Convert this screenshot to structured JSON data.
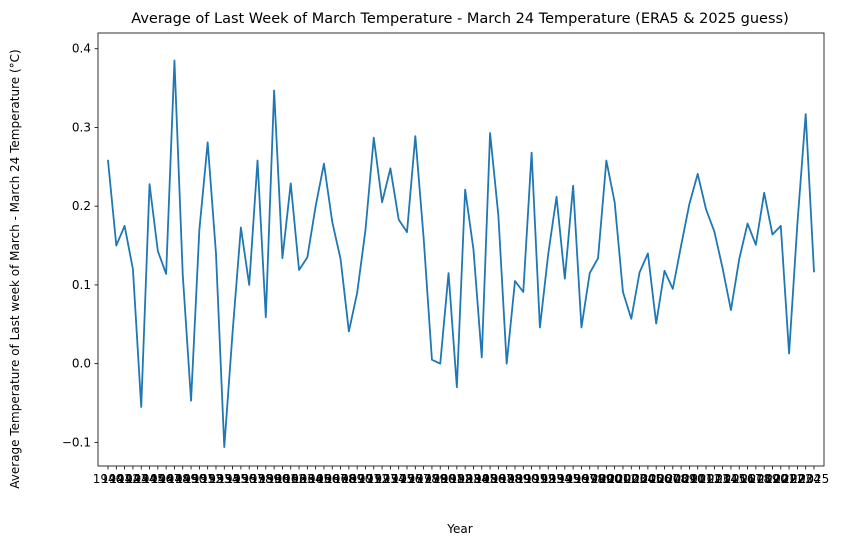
{
  "chart_data": {
    "type": "line",
    "title": "Average of Last Week of March Temperature - March 24 Temperature (ERA5 & 2025 guess)",
    "xlabel": "Year",
    "ylabel": "Average Temperature of Last week of March - March 24 Temperature (°C)",
    "ylim": [
      -0.13,
      0.42
    ],
    "yticks": [
      -0.1,
      0.0,
      0.1,
      0.2,
      0.3,
      0.4
    ],
    "ytick_labels": [
      "−0.1",
      "0.0",
      "0.1",
      "0.2",
      "0.3",
      "0.4"
    ],
    "grid": false,
    "line_color": "#1f77b4",
    "x": [
      1940,
      1941,
      1942,
      1943,
      1944,
      1945,
      1946,
      1947,
      1948,
      1949,
      1950,
      1951,
      1952,
      1953,
      1954,
      1955,
      1956,
      1957,
      1958,
      1959,
      1960,
      1961,
      1962,
      1963,
      1964,
      1965,
      1966,
      1967,
      1968,
      1969,
      1970,
      1971,
      1972,
      1973,
      1974,
      1975,
      1976,
      1977,
      1978,
      1979,
      1980,
      1981,
      1982,
      1983,
      1984,
      1985,
      1986,
      1987,
      1988,
      1989,
      1990,
      1991,
      1992,
      1993,
      1994,
      1995,
      1996,
      1997,
      1998,
      1999,
      2000,
      2001,
      2002,
      2003,
      2004,
      2005,
      2006,
      2007,
      2008,
      2009,
      2010,
      2011,
      2012,
      2013,
      2014,
      2015,
      2016,
      2017,
      2018,
      2019,
      2020,
      2021,
      2022,
      2023,
      2024,
      2025
    ],
    "series": [
      {
        "values": [
          0.258,
          0.15,
          0.175,
          0.12,
          -0.055,
          0.228,
          0.143,
          0.114,
          0.385,
          0.113,
          -0.047,
          0.17,
          0.281,
          0.14,
          -0.106,
          0.04,
          0.173,
          0.1,
          0.258,
          0.059,
          0.347,
          0.134,
          0.229,
          0.119,
          0.135,
          0.2,
          0.254,
          0.18,
          0.133,
          0.041,
          0.09,
          0.17,
          0.287,
          0.205,
          0.248,
          0.183,
          0.167,
          0.289,
          0.16,
          0.005,
          0.0,
          0.115,
          -0.03,
          0.221,
          0.145,
          0.008,
          0.293,
          0.188,
          0.0,
          0.105,
          0.091,
          0.268,
          0.046,
          0.139,
          0.212,
          0.108,
          0.226,
          0.046,
          0.115,
          0.134,
          0.258,
          0.205,
          0.091,
          0.057,
          0.116,
          0.14,
          0.051,
          0.118,
          0.095,
          0.15,
          0.203,
          0.241,
          0.196,
          0.168,
          0.121,
          0.068,
          0.133,
          0.178,
          0.151,
          0.217,
          0.164,
          0.175,
          0.013,
          0.178,
          0.317,
          0.117
        ]
      }
    ]
  }
}
